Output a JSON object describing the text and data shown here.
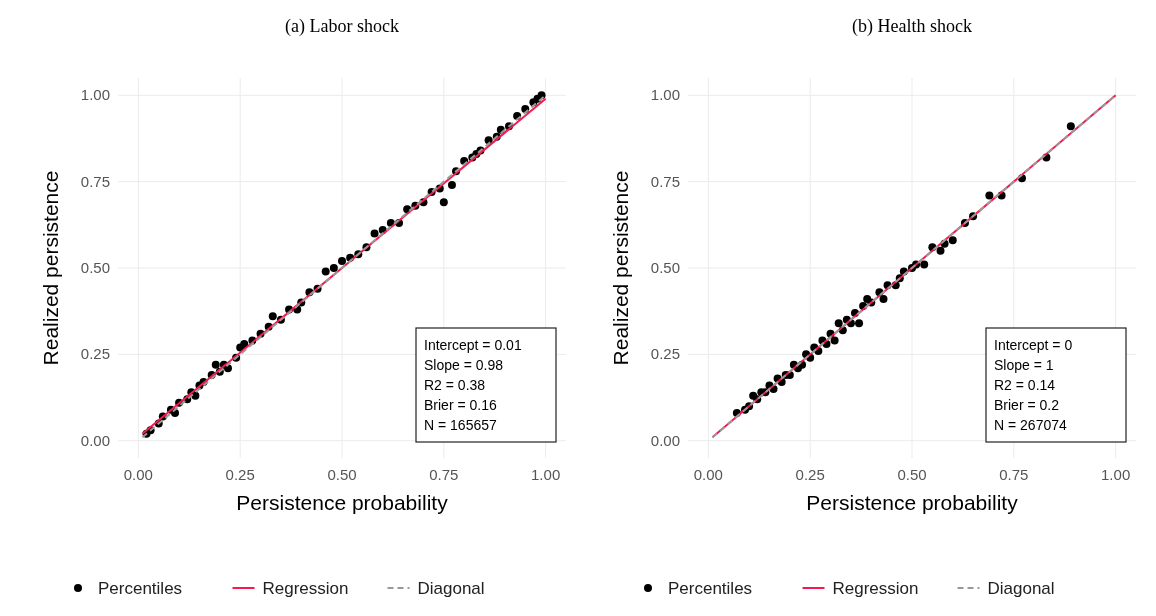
{
  "chart_data": [
    {
      "type": "scatter",
      "title": "(a) Labor shock",
      "xlabel": "Persistence probability",
      "ylabel": "Realized persistence",
      "xlim": [
        -0.05,
        1.05
      ],
      "ylim": [
        -0.05,
        1.05
      ],
      "xticks": [
        {
          "value": 0,
          "label": "0.00"
        },
        {
          "value": 0.25,
          "label": "0.25"
        },
        {
          "value": 0.5,
          "label": "0.50"
        },
        {
          "value": 0.75,
          "label": "0.75"
        },
        {
          "value": 1,
          "label": "1.00"
        }
      ],
      "yticks": [
        {
          "value": 0,
          "label": "0.00"
        },
        {
          "value": 0.25,
          "label": "0.25"
        },
        {
          "value": 0.5,
          "label": "0.50"
        },
        {
          "value": 0.75,
          "label": "0.75"
        },
        {
          "value": 1,
          "label": "1.00"
        }
      ],
      "grid": true,
      "legend": "bottom",
      "annotations": [
        "Intercept = 0.01",
        "Slope = 0.98",
        "R2 = 0.38",
        "Brier = 0.16",
        "N = 165657"
      ],
      "series": [
        {
          "name": "Percentiles",
          "type": "scatter",
          "marker": "circle",
          "color": "#000000",
          "x": [
            0.02,
            0.03,
            0.05,
            0.06,
            0.08,
            0.09,
            0.1,
            0.12,
            0.13,
            0.14,
            0.15,
            0.16,
            0.18,
            0.19,
            0.2,
            0.21,
            0.22,
            0.24,
            0.25,
            0.26,
            0.28,
            0.3,
            0.32,
            0.33,
            0.35,
            0.37,
            0.39,
            0.4,
            0.42,
            0.44,
            0.46,
            0.48,
            0.5,
            0.52,
            0.54,
            0.56,
            0.58,
            0.6,
            0.62,
            0.64,
            0.66,
            0.68,
            0.7,
            0.72,
            0.74,
            0.75,
            0.77,
            0.78,
            0.8,
            0.82,
            0.83,
            0.84,
            0.86,
            0.88,
            0.89,
            0.91,
            0.93,
            0.95,
            0.97,
            0.98,
            0.99
          ],
          "values": [
            0.02,
            0.03,
            0.05,
            0.07,
            0.09,
            0.08,
            0.11,
            0.12,
            0.14,
            0.13,
            0.16,
            0.17,
            0.19,
            0.22,
            0.2,
            0.22,
            0.21,
            0.24,
            0.27,
            0.28,
            0.29,
            0.31,
            0.33,
            0.36,
            0.35,
            0.38,
            0.38,
            0.4,
            0.43,
            0.44,
            0.49,
            0.5,
            0.52,
            0.53,
            0.54,
            0.56,
            0.6,
            0.61,
            0.63,
            0.63,
            0.67,
            0.68,
            0.69,
            0.72,
            0.73,
            0.69,
            0.74,
            0.78,
            0.81,
            0.82,
            0.83,
            0.84,
            0.87,
            0.88,
            0.9,
            0.91,
            0.94,
            0.96,
            0.98,
            0.99,
            1.0
          ]
        },
        {
          "name": "Regression",
          "type": "line",
          "line_style": "solid",
          "color": "#f5194f",
          "x": [
            0.01,
            1.0
          ],
          "values": [
            0.02,
            0.99
          ]
        },
        {
          "name": "Diagonal",
          "type": "line",
          "line_style": "dashed",
          "color": "#999999",
          "x": [
            0.01,
            1.0
          ],
          "values": [
            0.01,
            1.0
          ]
        }
      ]
    },
    {
      "type": "scatter",
      "title": "(b) Health shock",
      "xlabel": "Persistence probability",
      "ylabel": "Realized persistence",
      "xlim": [
        -0.05,
        1.05
      ],
      "ylim": [
        -0.05,
        1.05
      ],
      "xticks": [
        {
          "value": 0,
          "label": "0.00"
        },
        {
          "value": 0.25,
          "label": "0.25"
        },
        {
          "value": 0.5,
          "label": "0.50"
        },
        {
          "value": 0.75,
          "label": "0.75"
        },
        {
          "value": 1,
          "label": "1.00"
        }
      ],
      "yticks": [
        {
          "value": 0,
          "label": "0.00"
        },
        {
          "value": 0.25,
          "label": "0.25"
        },
        {
          "value": 0.5,
          "label": "0.50"
        },
        {
          "value": 0.75,
          "label": "0.75"
        },
        {
          "value": 1,
          "label": "1.00"
        }
      ],
      "grid": true,
      "legend": "bottom",
      "annotations": [
        "Intercept = 0",
        "Slope = 1",
        "R2 = 0.14",
        "Brier = 0.2",
        "N = 267074"
      ],
      "series": [
        {
          "name": "Percentiles",
          "type": "scatter",
          "marker": "circle",
          "color": "#000000",
          "x": [
            0.07,
            0.09,
            0.1,
            0.11,
            0.12,
            0.13,
            0.14,
            0.15,
            0.16,
            0.17,
            0.18,
            0.19,
            0.2,
            0.21,
            0.22,
            0.23,
            0.24,
            0.25,
            0.26,
            0.27,
            0.28,
            0.29,
            0.3,
            0.31,
            0.32,
            0.33,
            0.34,
            0.35,
            0.36,
            0.37,
            0.38,
            0.39,
            0.4,
            0.42,
            0.43,
            0.44,
            0.46,
            0.47,
            0.48,
            0.5,
            0.51,
            0.53,
            0.55,
            0.57,
            0.58,
            0.6,
            0.63,
            0.65,
            0.69,
            0.72,
            0.77,
            0.83,
            0.89
          ],
          "values": [
            0.08,
            0.09,
            0.1,
            0.13,
            0.12,
            0.14,
            0.14,
            0.16,
            0.15,
            0.18,
            0.17,
            0.19,
            0.19,
            0.22,
            0.21,
            0.22,
            0.25,
            0.24,
            0.27,
            0.26,
            0.29,
            0.28,
            0.31,
            0.29,
            0.34,
            0.32,
            0.35,
            0.34,
            0.37,
            0.34,
            0.39,
            0.41,
            0.4,
            0.43,
            0.41,
            0.45,
            0.45,
            0.47,
            0.49,
            0.5,
            0.51,
            0.51,
            0.56,
            0.55,
            0.57,
            0.58,
            0.63,
            0.65,
            0.71,
            0.71,
            0.76,
            0.82,
            0.91
          ]
        },
        {
          "name": "Regression",
          "type": "line",
          "line_style": "solid",
          "color": "#f5194f",
          "x": [
            0.01,
            1.0
          ],
          "values": [
            0.01,
            1.0
          ]
        },
        {
          "name": "Diagonal",
          "type": "line",
          "line_style": "dashed",
          "color": "#999999",
          "x": [
            0.01,
            1.0
          ],
          "values": [
            0.01,
            1.0
          ]
        }
      ]
    }
  ]
}
